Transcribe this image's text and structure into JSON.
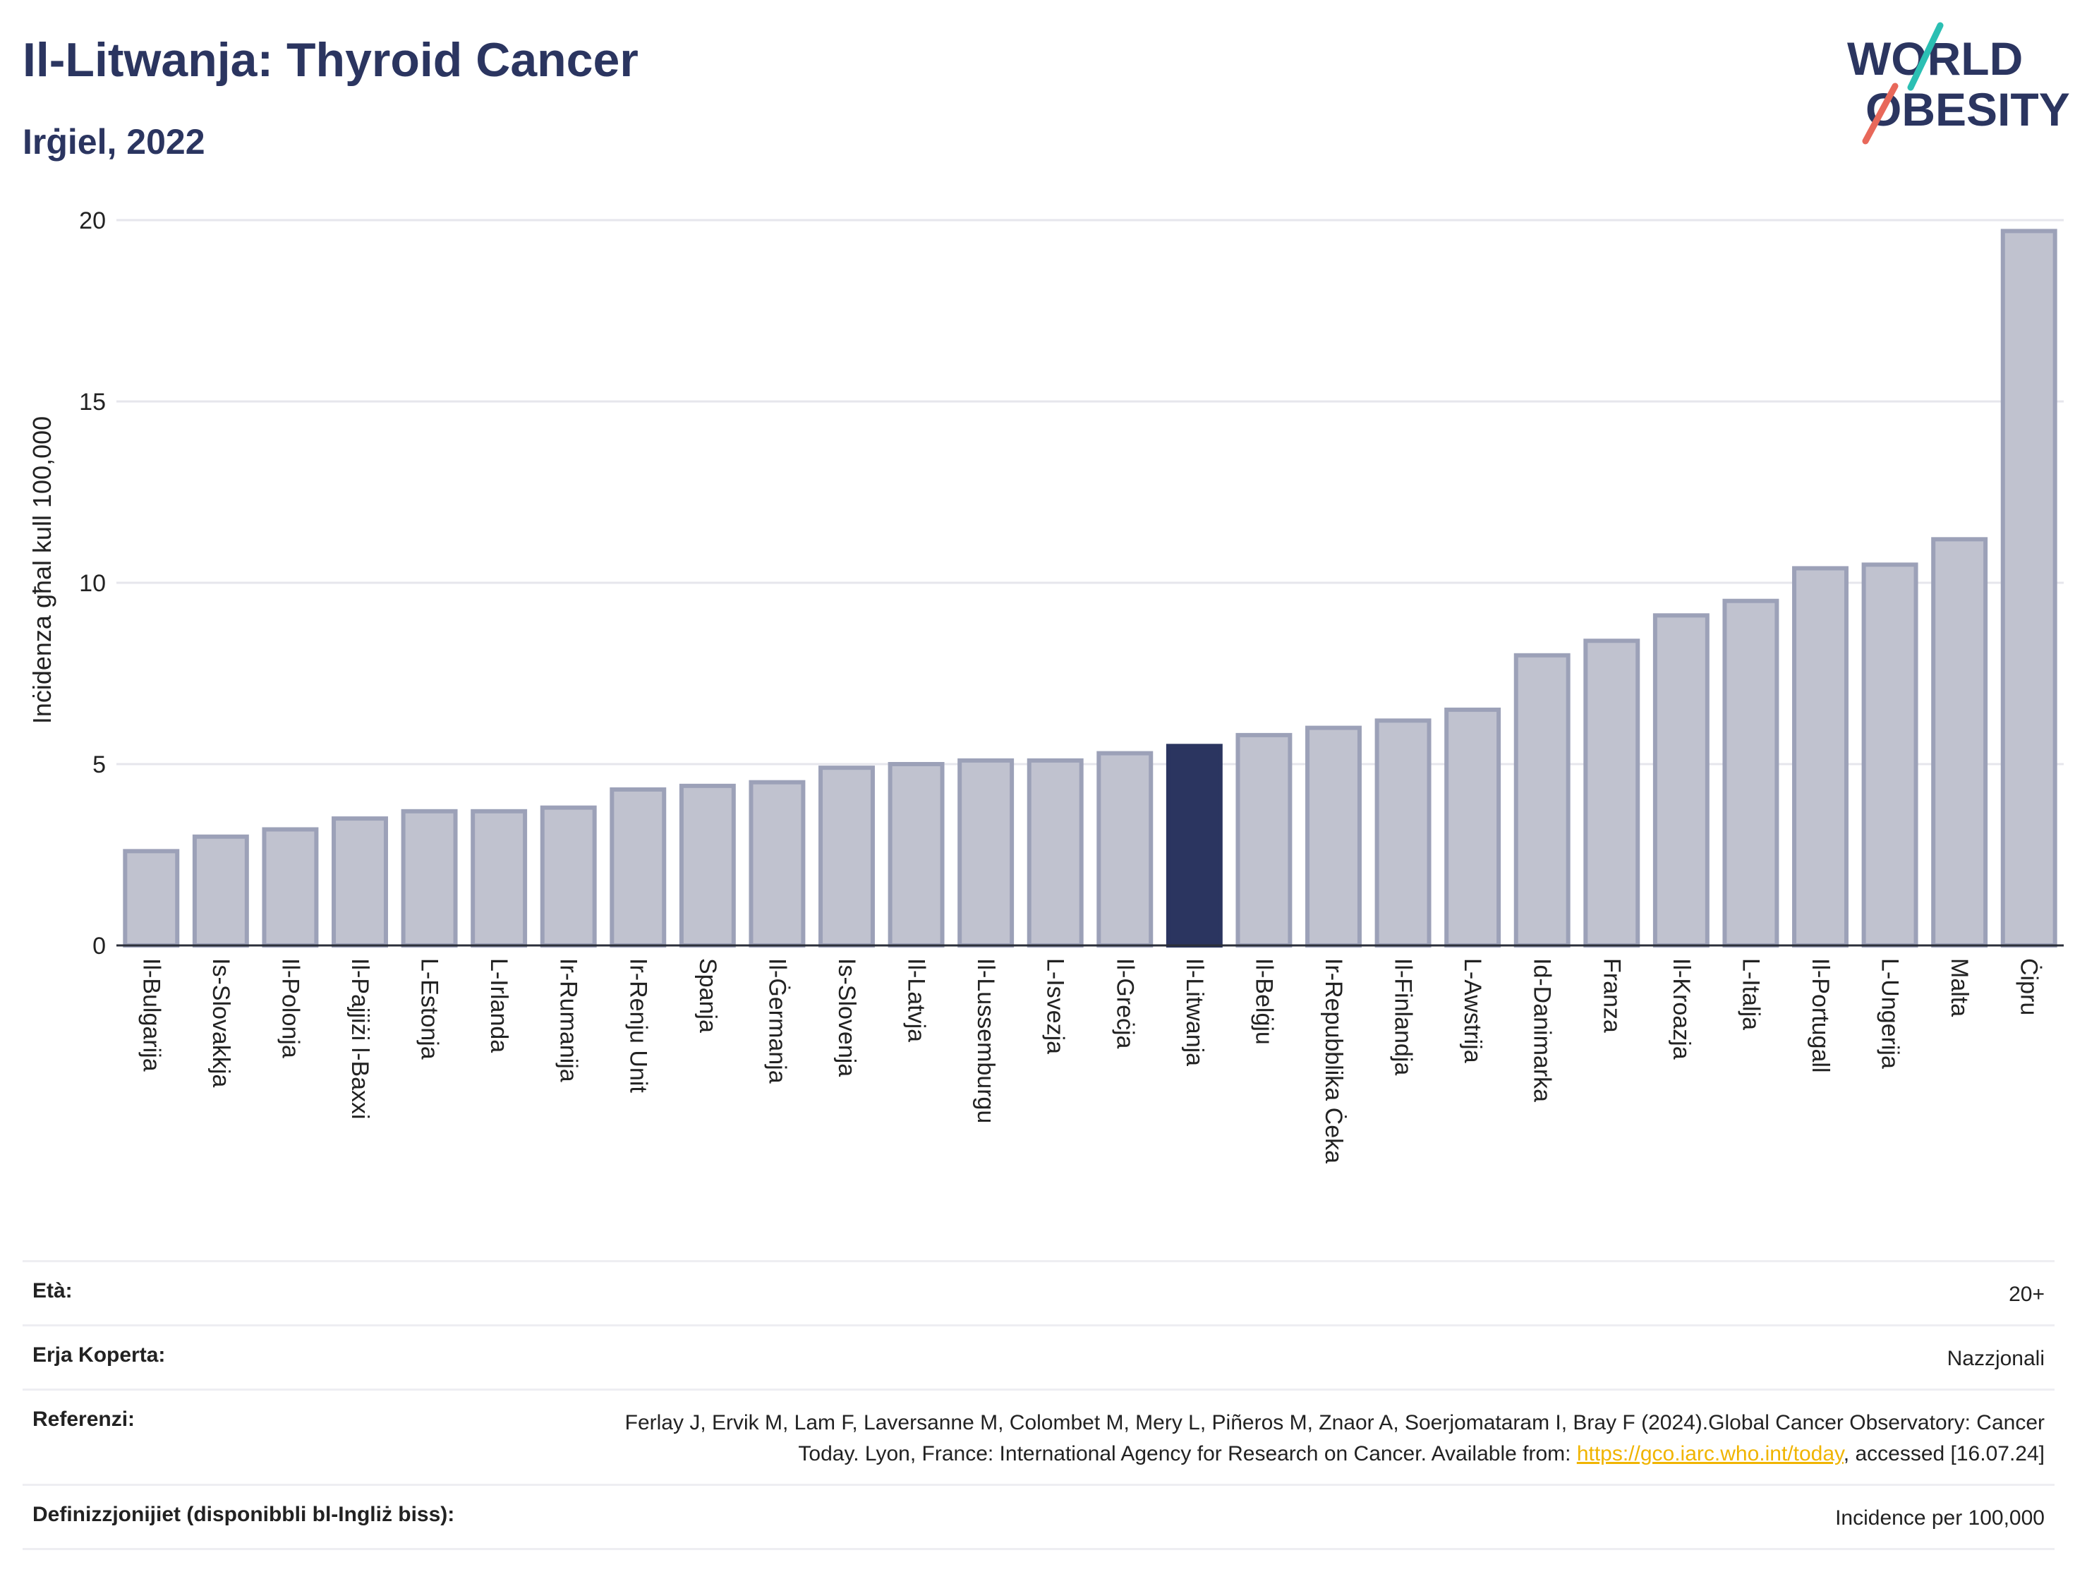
{
  "header": {
    "title": "Il-Litwanja: Thyroid Cancer",
    "subtitle": "Irġiel, 2022"
  },
  "logo": {
    "line1": "WORLD",
    "line2": "OBESITY"
  },
  "colors": {
    "bar": "#c0c2cf",
    "bar_stroke": "#9ca1b8",
    "highlight": "#2b3560",
    "grid": "#e6e6ec",
    "title": "#2b3560"
  },
  "chart_data": {
    "type": "bar",
    "title": "Il-Litwanja: Thyroid Cancer",
    "subtitle": "Irġiel, 2022",
    "ylabel": "Inċidenza għal kull 100,000",
    "xlabel": "",
    "ylim": [
      0,
      20
    ],
    "yticks": [
      0,
      5,
      10,
      15,
      20
    ],
    "grid": true,
    "highlight": "Il-Litwanja",
    "categories": [
      "Il-Bulgarija",
      "Is-Slovakkja",
      "Il-Polonja",
      "Il-Pajjiżi l-Baxxi",
      "L-Estonja",
      "L-Irlanda",
      "Ir-Rumanija",
      "Ir-Renju Unit",
      "Spanja",
      "Il-Ġermanja",
      "Is-Slovenja",
      "Il-Latvja",
      "Il-Lussemburgu",
      "L-Isvezja",
      "Il-Greċja",
      "Il-Litwanja",
      "Il-Belġju",
      "Ir-Repubblika Ċeka",
      "Il-Finlandja",
      "L-Awstrija",
      "Id-Danimarka",
      "Franza",
      "Il-Kroazja",
      "L-Italja",
      "Il-Portugall",
      "L-Ungerija",
      "Malta",
      "Ċipru"
    ],
    "values": [
      2.6,
      3.0,
      3.2,
      3.5,
      3.7,
      3.7,
      3.8,
      4.3,
      4.4,
      4.5,
      4.9,
      5.0,
      5.1,
      5.1,
      5.3,
      5.5,
      5.8,
      6.0,
      6.2,
      6.5,
      8.0,
      8.4,
      9.1,
      9.5,
      10.4,
      10.5,
      11.2,
      19.7
    ]
  },
  "meta": {
    "age_label": "Età:",
    "age_value": "20+",
    "area_label": "Erja Koperta:",
    "area_value": "Nazzjonali",
    "ref_label": "Referenzi:",
    "ref_text_1": "Ferlay J, Ervik M, Lam F, Laversanne M, Colombet M, Mery L, Piñeros M, Znaor A, Soerjomataram I, Bray F (2024).Global Cancer Observatory: Cancer Today. Lyon, France: International Agency for Research on Cancer. Available from: ",
    "ref_link": "https://gco.iarc.who.int/today",
    "ref_text_2": ", accessed [16.07.24]",
    "def_label": "Definizzjonijiet (disponibbli bl-Ingliż biss):",
    "def_value": "Incidence per 100,000"
  }
}
